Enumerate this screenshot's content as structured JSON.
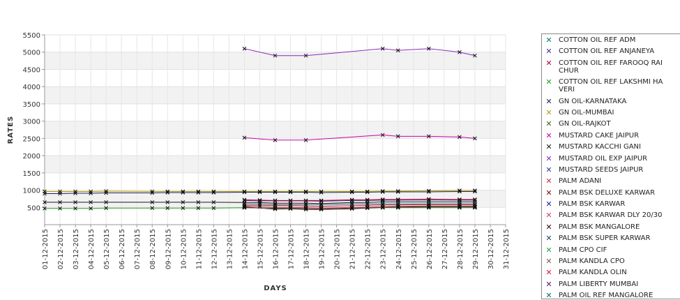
{
  "chart_data": {
    "type": "line",
    "title": "",
    "xlabel": "DAYS",
    "ylabel": "RATES",
    "ylim": [
      0,
      5500
    ],
    "yticks": [
      500,
      1000,
      1500,
      2000,
      2500,
      3000,
      3500,
      4000,
      4500,
      5000,
      5500
    ],
    "grid": true,
    "legend_position": "right",
    "categories": [
      "01-12-2015",
      "02-12-2015",
      "03-12-2015",
      "04-12-2015",
      "05-12-2015",
      "06-12-2015",
      "07-12-2015",
      "08-12-2015",
      "09-12-2015",
      "10-12-2015",
      "11-12-2015",
      "12-12-2015",
      "13-12-2015",
      "14-12-2015",
      "15-12-2015",
      "16-12-2015",
      "17-12-2015",
      "18-12-2015",
      "19-12-2015",
      "20-12-2015",
      "21-12-2015",
      "22-12-2015",
      "23-12-2015",
      "24-12-2015",
      "25-12-2015",
      "26-12-2015",
      "27-12-2015",
      "28-12-2015",
      "29-12-2015",
      "30-12-2015",
      "31-12-2015"
    ],
    "series": [
      {
        "name": "COTTON OIL REF ADM",
        "color": "#007a6e",
        "values": [
          null,
          null,
          null,
          null,
          null,
          null,
          null,
          null,
          null,
          null,
          null,
          null,
          null,
          600,
          600,
          580,
          580,
          580,
          580,
          null,
          600,
          600,
          600,
          600,
          null,
          600,
          null,
          600,
          600,
          null,
          null
        ]
      },
      {
        "name": "COTTON OIL REF ANJANEYA",
        "color": "#4b2a8a",
        "values": [
          null,
          null,
          null,
          null,
          null,
          null,
          null,
          null,
          null,
          null,
          null,
          null,
          null,
          700,
          690,
          690,
          690,
          690,
          680,
          null,
          700,
          700,
          710,
          710,
          null,
          710,
          null,
          710,
          710,
          null,
          null
        ]
      },
      {
        "name": "COTTON OIL REF FAROOQ RAI CHUR",
        "color": "#b3003c",
        "values": [
          null,
          null,
          null,
          null,
          null,
          null,
          null,
          null,
          null,
          null,
          null,
          null,
          null,
          720,
          710,
          700,
          700,
          700,
          700,
          null,
          720,
          720,
          730,
          730,
          null,
          740,
          null,
          730,
          730,
          null,
          null
        ]
      },
      {
        "name": "COTTON OIL REF LAKSHMI HA VERI",
        "color": "#1e9e1e",
        "values": [
          470,
          470,
          470,
          470,
          480,
          null,
          null,
          480,
          480,
          480,
          480,
          480,
          null,
          490,
          null,
          480,
          480,
          480,
          470,
          null,
          480,
          480,
          490,
          490,
          null,
          490,
          null,
          490,
          490,
          null,
          null
        ]
      },
      {
        "name": "GN OIL-KARNATAKA",
        "color": "#22224e",
        "values": [
          900,
          900,
          910,
          910,
          920,
          null,
          null,
          920,
          930,
          930,
          930,
          930,
          null,
          940,
          940,
          940,
          940,
          940,
          930,
          null,
          940,
          940,
          950,
          950,
          null,
          950,
          null,
          960,
          960,
          null,
          null
        ]
      },
      {
        "name": "GN OIL-MUMBAI",
        "color": "#b59a00",
        "values": [
          960,
          960,
          960,
          960,
          970,
          null,
          null,
          960,
          960,
          960,
          960,
          960,
          null,
          960,
          960,
          960,
          960,
          960,
          960,
          null,
          960,
          960,
          970,
          970,
          null,
          980,
          null,
          990,
          990,
          null,
          null
        ]
      },
      {
        "name": "GN OIL-RAJKOT",
        "color": "#2f6b1a",
        "values": [
          null,
          null,
          null,
          null,
          null,
          null,
          null,
          null,
          null,
          null,
          null,
          null,
          null,
          null,
          null,
          null,
          null,
          null,
          null,
          null,
          null,
          null,
          null,
          null,
          null,
          null,
          null,
          null,
          null,
          null,
          null
        ]
      },
      {
        "name": "MUSTARD CAKE JAIPUR",
        "color": "#cc00aa",
        "values": [
          null,
          null,
          null,
          null,
          null,
          null,
          null,
          null,
          null,
          null,
          null,
          null,
          null,
          2520,
          null,
          2450,
          null,
          2450,
          null,
          null,
          null,
          null,
          2600,
          2560,
          null,
          2560,
          null,
          2540,
          2500,
          null,
          null
        ]
      },
      {
        "name": "MUSTARD KACCHI GANI",
        "color": "#1a1a1a",
        "values": [
          650,
          650,
          650,
          650,
          650,
          null,
          null,
          650,
          650,
          650,
          650,
          650,
          null,
          640,
          640,
          620,
          620,
          620,
          610,
          null,
          640,
          640,
          660,
          660,
          null,
          660,
          null,
          660,
          660,
          null,
          null
        ]
      },
      {
        "name": "MUSTARD OIL EXP JAIPUR",
        "color": "#8a2ab8",
        "values": [
          null,
          null,
          null,
          null,
          null,
          null,
          null,
          null,
          null,
          null,
          null,
          null,
          null,
          5100,
          null,
          4900,
          null,
          4900,
          null,
          null,
          null,
          null,
          5100,
          5050,
          null,
          5100,
          null,
          5000,
          4900,
          null,
          null
        ]
      },
      {
        "name": "MUSTARD SEEDS JAIPUR",
        "color": "#2a3a9e",
        "values": [
          null,
          null,
          null,
          null,
          null,
          null,
          null,
          null,
          null,
          null,
          null,
          null,
          null,
          null,
          null,
          null,
          null,
          null,
          null,
          null,
          null,
          null,
          null,
          null,
          null,
          null,
          null,
          null,
          null,
          null,
          null
        ]
      },
      {
        "name": "PALM ADANI",
        "color": "#c0304a",
        "values": [
          null,
          null,
          null,
          null,
          null,
          null,
          null,
          null,
          null,
          null,
          null,
          null,
          null,
          530,
          520,
          500,
          500,
          490,
          480,
          null,
          500,
          510,
          520,
          530,
          null,
          540,
          null,
          540,
          540,
          null,
          null
        ]
      },
      {
        "name": "PALM BSK DELUXE KARWAR",
        "color": "#7a0a0a",
        "values": [
          null,
          null,
          null,
          null,
          null,
          null,
          null,
          null,
          null,
          null,
          null,
          null,
          null,
          null,
          null,
          null,
          null,
          null,
          null,
          null,
          null,
          null,
          null,
          null,
          null,
          null,
          null,
          null,
          null,
          null,
          null
        ]
      },
      {
        "name": "PALM BSK KARWAR",
        "color": "#1a1aa0",
        "values": [
          null,
          null,
          null,
          null,
          null,
          null,
          null,
          null,
          null,
          null,
          null,
          null,
          null,
          null,
          null,
          null,
          null,
          null,
          null,
          null,
          null,
          null,
          null,
          null,
          null,
          null,
          null,
          null,
          null,
          null,
          null
        ]
      },
      {
        "name": "PALM BSK KARWAR DLY 20/30",
        "color": "#c04080",
        "values": [
          null,
          null,
          null,
          null,
          null,
          null,
          null,
          null,
          null,
          null,
          null,
          null,
          null,
          null,
          null,
          null,
          null,
          null,
          null,
          null,
          null,
          null,
          null,
          null,
          null,
          null,
          null,
          null,
          null,
          null,
          null
        ]
      },
      {
        "name": "PALM BSK MANGALORE",
        "color": "#2a0a0a",
        "values": [
          null,
          null,
          null,
          null,
          null,
          null,
          null,
          null,
          null,
          null,
          null,
          null,
          null,
          510,
          null,
          450,
          460,
          440,
          440,
          null,
          460,
          480,
          500,
          510,
          null,
          520,
          null,
          520,
          520,
          null,
          null
        ]
      },
      {
        "name": "PALM BSK SUPER KARWAR",
        "color": "#1a4a6a",
        "values": [
          null,
          null,
          null,
          null,
          null,
          null,
          null,
          null,
          null,
          null,
          null,
          null,
          null,
          null,
          null,
          null,
          null,
          null,
          null,
          null,
          null,
          null,
          null,
          null,
          null,
          null,
          null,
          null,
          null,
          null,
          null
        ]
      },
      {
        "name": "PALM CPO CIF",
        "color": "#20a040",
        "values": [
          null,
          null,
          null,
          null,
          null,
          null,
          null,
          null,
          null,
          null,
          null,
          null,
          null,
          null,
          null,
          null,
          null,
          null,
          null,
          null,
          null,
          null,
          null,
          null,
          null,
          null,
          null,
          null,
          null,
          null,
          null
        ]
      },
      {
        "name": "PALM KANDLA CPO",
        "color": "#7a5a5a",
        "values": [
          null,
          null,
          null,
          null,
          null,
          null,
          null,
          null,
          null,
          null,
          null,
          null,
          null,
          490,
          null,
          470,
          470,
          470,
          460,
          null,
          480,
          490,
          500,
          500,
          null,
          510,
          null,
          510,
          510,
          null,
          null
        ]
      },
      {
        "name": "PALM KANDLA OLIN",
        "color": "#e0103a",
        "values": [
          null,
          null,
          null,
          null,
          null,
          null,
          null,
          null,
          null,
          null,
          null,
          null,
          null,
          560,
          560,
          550,
          550,
          540,
          530,
          null,
          550,
          560,
          570,
          570,
          null,
          580,
          null,
          580,
          580,
          null,
          null
        ]
      },
      {
        "name": "PALM LIBERTY MUMBAI",
        "color": "#50107a",
        "values": [
          null,
          null,
          null,
          null,
          null,
          null,
          null,
          null,
          null,
          null,
          null,
          null,
          null,
          null,
          null,
          null,
          null,
          null,
          null,
          null,
          null,
          null,
          null,
          null,
          null,
          null,
          null,
          null,
          null,
          null,
          null
        ]
      },
      {
        "name": "PALM OIL REF MANGALORE",
        "color": "#0a6a6a",
        "values": [
          null,
          null,
          null,
          null,
          null,
          null,
          null,
          null,
          null,
          null,
          null,
          null,
          null,
          null,
          null,
          null,
          null,
          null,
          null,
          null,
          null,
          null,
          null,
          null,
          null,
          null,
          null,
          null,
          null,
          null,
          null
        ]
      }
    ]
  }
}
